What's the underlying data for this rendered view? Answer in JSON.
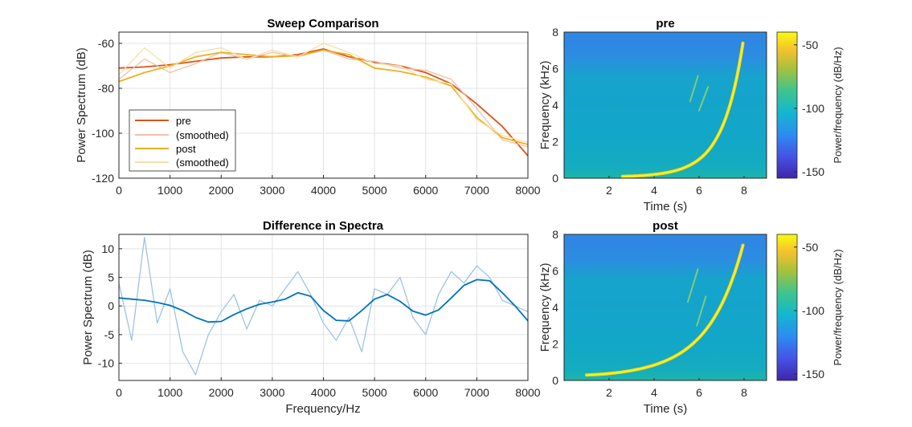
{
  "chart_data": [
    {
      "type": "line",
      "title": "Sweep Comparison",
      "xlabel": "",
      "ylabel": "Power Spectrum (dB)",
      "xlim": [
        0,
        8000
      ],
      "ylim": [
        -120,
        -55
      ],
      "xticks": [
        "0",
        "1000",
        "2000",
        "3000",
        "4000",
        "5000",
        "6000",
        "7000",
        "8000"
      ],
      "yticks": [
        "-120",
        "-100",
        "-80",
        "-60"
      ],
      "grid": true,
      "legend_placement": "lower-left",
      "series": [
        {
          "name": "pre",
          "color": "#D95319",
          "x": [
            0,
            500,
            1000,
            1500,
            2000,
            2500,
            3000,
            3500,
            4000,
            4500,
            5000,
            5500,
            6000,
            6500,
            7000,
            7500,
            8000
          ],
          "values": [
            -71,
            -70.5,
            -69.5,
            -68,
            -66.5,
            -66,
            -66,
            -65,
            -62.5,
            -66,
            -68.5,
            -70,
            -73,
            -78,
            -87,
            -97,
            -110
          ]
        },
        {
          "name": "(smoothed)",
          "color": "#F2BFA8",
          "x": [
            0,
            500,
            1000,
            1500,
            2000,
            2500,
            3000,
            3500,
            4000,
            4500,
            5000,
            5500,
            6000,
            6500,
            7000,
            7500,
            8000
          ],
          "values": [
            -76,
            -67,
            -73,
            -69,
            -64,
            -67,
            -64,
            -66,
            -63,
            -67,
            -68,
            -71,
            -72,
            -76,
            -89,
            -103,
            -106
          ]
        },
        {
          "name": "post",
          "color": "#EDB120",
          "x": [
            0,
            500,
            1000,
            1500,
            2000,
            2500,
            3000,
            3500,
            4000,
            4500,
            5000,
            5500,
            6000,
            6500,
            7000,
            7500,
            8000
          ],
          "values": [
            -77,
            -73,
            -70,
            -66,
            -64,
            -65,
            -66,
            -65.5,
            -63,
            -65,
            -71,
            -72.5,
            -75,
            -79,
            -93,
            -102,
            -105
          ]
        },
        {
          "name": "(smoothed)",
          "color": "#F8DFA6",
          "x": [
            0,
            500,
            1000,
            1500,
            2000,
            2500,
            3000,
            3500,
            4000,
            4500,
            5000,
            5500,
            6000,
            6500,
            7000,
            7500,
            8000
          ],
          "values": [
            -74,
            -62,
            -71,
            -64,
            -62,
            -67,
            -63,
            -66,
            -60,
            -64,
            -69,
            -70,
            -76,
            -78,
            -94,
            -101,
            -104
          ]
        }
      ]
    },
    {
      "type": "line",
      "title": "Difference in Spectra",
      "xlabel": "Frequency/Hz",
      "ylabel": "Power Spectrum (dB)",
      "xlim": [
        0,
        8000
      ],
      "ylim": [
        -13,
        12.5
      ],
      "xticks": [
        "0",
        "1000",
        "2000",
        "3000",
        "4000",
        "5000",
        "6000",
        "7000",
        "8000"
      ],
      "yticks": [
        "-10",
        "-5",
        "0",
        "5",
        "10"
      ],
      "grid": true,
      "series": [
        {
          "color": "#9DC3E6",
          "x": [
            0,
            250,
            500,
            750,
            1000,
            1250,
            1500,
            1750,
            2000,
            2250,
            2500,
            2750,
            3000,
            3250,
            3500,
            3750,
            4000,
            4250,
            4500,
            4750,
            5000,
            5250,
            5500,
            5750,
            6000,
            6250,
            6500,
            6750,
            7000,
            7250,
            7500,
            7750,
            8000
          ],
          "values": [
            4,
            -6,
            12,
            -3,
            3,
            -8,
            -12,
            -5,
            -1,
            2,
            -4,
            1,
            0,
            3,
            6,
            2,
            -3,
            -6,
            -2,
            -8,
            3,
            2,
            5,
            -2,
            -5,
            2,
            6,
            4,
            7,
            5,
            1,
            0,
            -1
          ]
        },
        {
          "color": "#0072BD",
          "x": [
            0,
            250,
            500,
            750,
            1000,
            1250,
            1500,
            1750,
            2000,
            2250,
            2500,
            2750,
            3000,
            3250,
            3500,
            3750,
            4000,
            4250,
            4500,
            4750,
            5000,
            5250,
            5500,
            5750,
            6000,
            6250,
            6500,
            6750,
            7000,
            7250,
            7500,
            7750,
            8000
          ],
          "values": [
            1.4,
            1.2,
            1.0,
            0.6,
            0.1,
            -0.8,
            -2.0,
            -2.8,
            -2.7,
            -1.5,
            -0.5,
            0.3,
            0.7,
            1.2,
            2.3,
            1.7,
            -0.8,
            -2.5,
            -2.6,
            -0.8,
            1.2,
            2.0,
            0.8,
            -0.9,
            -1.6,
            -0.7,
            1.4,
            3.6,
            4.6,
            4.4,
            2.3,
            0.0,
            -2.6
          ]
        }
      ]
    },
    {
      "type": "heatmap",
      "title": "pre",
      "xlabel": "Time (s)",
      "ylabel": "Frequency (kHz)",
      "xlim": [
        0,
        9
      ],
      "ylim": [
        0,
        8
      ],
      "xticks": [
        "2",
        "4",
        "6",
        "8"
      ],
      "yticks": [
        "0",
        "2",
        "4",
        "6",
        "8"
      ],
      "colorbar": {
        "label": "Power/frequency (dB/Hz)",
        "ticks": [
          "-50",
          "-100",
          "-150"
        ],
        "range": [
          -155,
          -40
        ]
      },
      "sweep": {
        "t_start": 2.6,
        "t_end": 7.95,
        "f_start_khz": 0.1,
        "f_end_khz": 7.4
      },
      "harmonic_traces": [
        {
          "t": [
            5.6,
            5.95
          ],
          "f_khz": [
            4.2,
            5.6
          ]
        },
        {
          "t": [
            6.0,
            6.4
          ],
          "f_khz": [
            3.7,
            5.0
          ]
        }
      ]
    },
    {
      "type": "heatmap",
      "title": "post",
      "xlabel": "Time (s)",
      "ylabel": "Frequency (kHz)",
      "xlim": [
        0,
        9
      ],
      "ylim": [
        0,
        8
      ],
      "xticks": [
        "2",
        "4",
        "6",
        "8"
      ],
      "yticks": [
        "0",
        "2",
        "4",
        "6",
        "8"
      ],
      "colorbar": {
        "label": "Power/frequency (dB/Hz)",
        "ticks": [
          "-50",
          "-100",
          "-150"
        ],
        "range": [
          -155,
          -40
        ]
      },
      "sweep": {
        "t_start": 1.0,
        "t_end": 7.95,
        "f_start_khz": 0.3,
        "f_end_khz": 7.4
      },
      "harmonic_traces": [
        {
          "t": [
            5.5,
            5.95
          ],
          "f_khz": [
            4.3,
            6.1
          ]
        },
        {
          "t": [
            5.9,
            6.3
          ],
          "f_khz": [
            3.0,
            4.6
          ]
        }
      ]
    }
  ]
}
